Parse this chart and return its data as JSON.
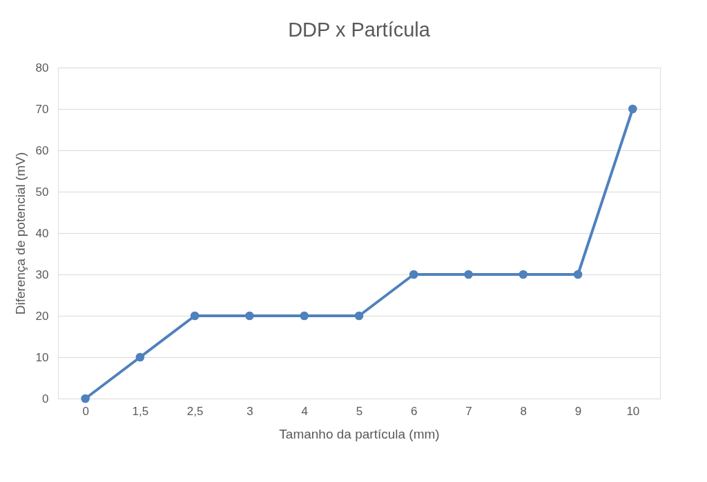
{
  "chart_data": {
    "type": "line",
    "title": "DDP x Partícula",
    "xlabel": "Tamanho da partícula (mm)",
    "ylabel": "Diferença de potencial (mV)",
    "categories": [
      "0",
      "1,5",
      "2,5",
      "3",
      "4",
      "5",
      "6",
      "7",
      "8",
      "9",
      "10"
    ],
    "series": [
      {
        "color": "#4f81bd",
        "values": [
          0,
          10,
          20,
          20,
          20,
          20,
          30,
          30,
          30,
          30,
          70
        ]
      }
    ],
    "ylim": [
      0,
      80
    ],
    "yticks": [
      0,
      10,
      20,
      30,
      40,
      50,
      60,
      70,
      80
    ],
    "grid": "y",
    "legend": false,
    "marker": "circle",
    "line_style": "solid"
  }
}
